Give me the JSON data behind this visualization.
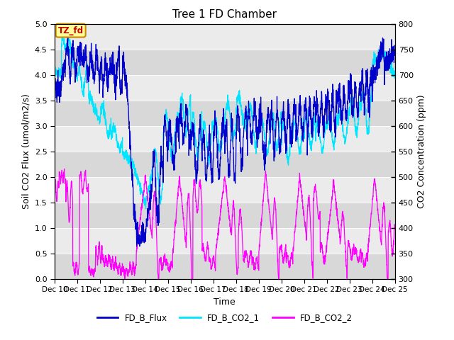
{
  "title": "Tree 1 FD Chamber",
  "xlabel": "Time",
  "ylabel_left": "Soil CO2 Flux (umol/m2/s)",
  "ylabel_right": "CO2 Concentration (ppm)",
  "ylim_left": [
    0.0,
    5.0
  ],
  "ylim_right": [
    300,
    800
  ],
  "xlim_start": 10,
  "xlim_end": 25,
  "xtick_labels": [
    "Dec 10",
    "Dec 11",
    "Dec 12",
    "Dec 13",
    "Dec 14",
    "Dec 15",
    "Dec 16",
    "Dec 17",
    "Dec 18",
    "Dec 19",
    "Dec 20",
    "Dec 21",
    "Dec 22",
    "Dec 23",
    "Dec 24",
    "Dec 25"
  ],
  "color_flux": "#0000CC",
  "color_co2_1": "#00E5FF",
  "color_co2_2": "#FF00FF",
  "legend_labels": [
    "FD_B_Flux",
    "FD_B_CO2_1",
    "FD_B_CO2_2"
  ],
  "annotation_text": "TZ_fd",
  "annotation_box_color": "#FFFF99",
  "annotation_box_edge": "#CC8800",
  "annotation_text_color": "#CC0000",
  "bg_dark": "#D8D8D8",
  "bg_light": "#EBEBEB",
  "title_fontsize": 11,
  "label_fontsize": 9,
  "tick_fontsize": 8
}
